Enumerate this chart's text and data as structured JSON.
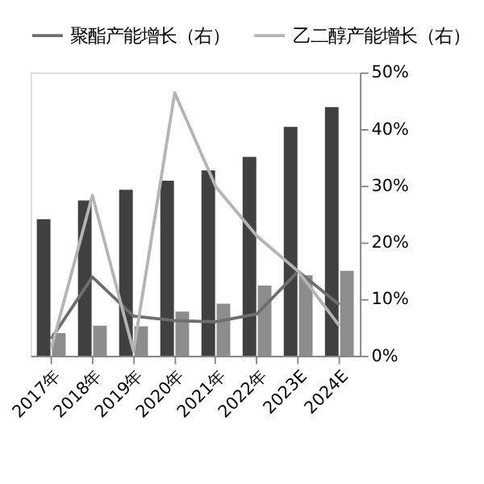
{
  "chart_data": {
    "type": "bar",
    "categories": [
      "2017年",
      "2018年",
      "2019年",
      "2020年",
      "2021年",
      "2022年",
      "2023E",
      "2024E"
    ],
    "series": [
      {
        "color": "#404040",
        "values": [
          24.1,
          27.4,
          29.3,
          30.9,
          32.7,
          35.1,
          40.4,
          43.9
        ]
      },
      {
        "color": "#8c8c8c",
        "values": [
          4.0,
          5.3,
          5.2,
          7.8,
          9.2,
          12.4,
          14.2,
          15.0
        ]
      },
      {
        "name": "聚酯产能增长（右）",
        "type": "line",
        "color": "#6e6e6e",
        "values": [
          3.0,
          13.9,
          7.0,
          6.2,
          6.0,
          7.4,
          14.9,
          9.0
        ]
      },
      {
        "name": "乙二醇产能增长（右）",
        "type": "line",
        "color": "#b4b4b4",
        "values": [
          1.2,
          28.3,
          0.8,
          46.4,
          29.8,
          21.1,
          14.9,
          5.3
        ]
      }
    ],
    "ylim": [
      0,
      50
    ],
    "yticks": [
      {
        "value": 0,
        "label": "0%"
      },
      {
        "value": 10,
        "label": "10%"
      },
      {
        "value": 20,
        "label": "20%"
      },
      {
        "value": 30,
        "label": "30%"
      },
      {
        "value": 40,
        "label": "40%"
      },
      {
        "value": 50,
        "label": "50%"
      }
    ],
    "legend": "top",
    "grid": false,
    "marker": "none",
    "line_style": "solid"
  }
}
